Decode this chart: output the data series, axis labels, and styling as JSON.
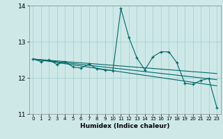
{
  "title": "",
  "xlabel": "Humidex (Indice chaleur)",
  "bg_color": "#cee8e8",
  "grid_color": "#9ecece",
  "line_color": "#006666",
  "xlim": [
    -0.5,
    23.5
  ],
  "ylim": [
    11,
    14
  ],
  "yticks": [
    11,
    12,
    13,
    14
  ],
  "xticks": [
    0,
    1,
    2,
    3,
    4,
    5,
    6,
    7,
    8,
    9,
    10,
    11,
    12,
    13,
    14,
    15,
    16,
    17,
    18,
    19,
    20,
    21,
    22,
    23
  ],
  "main_y": [
    12.52,
    12.45,
    12.5,
    12.37,
    12.45,
    12.3,
    12.27,
    12.38,
    12.25,
    12.22,
    12.2,
    13.92,
    13.12,
    12.55,
    12.22,
    12.58,
    12.72,
    12.72,
    12.42,
    11.85,
    11.82,
    11.93,
    11.98,
    11.18
  ],
  "trend1_x": [
    0,
    23
  ],
  "trend1_y": [
    12.52,
    11.78
  ],
  "trend2_x": [
    0,
    23
  ],
  "trend2_y": [
    12.52,
    11.95
  ],
  "trend3_x": [
    0,
    23
  ],
  "trend3_y": [
    12.52,
    12.12
  ]
}
